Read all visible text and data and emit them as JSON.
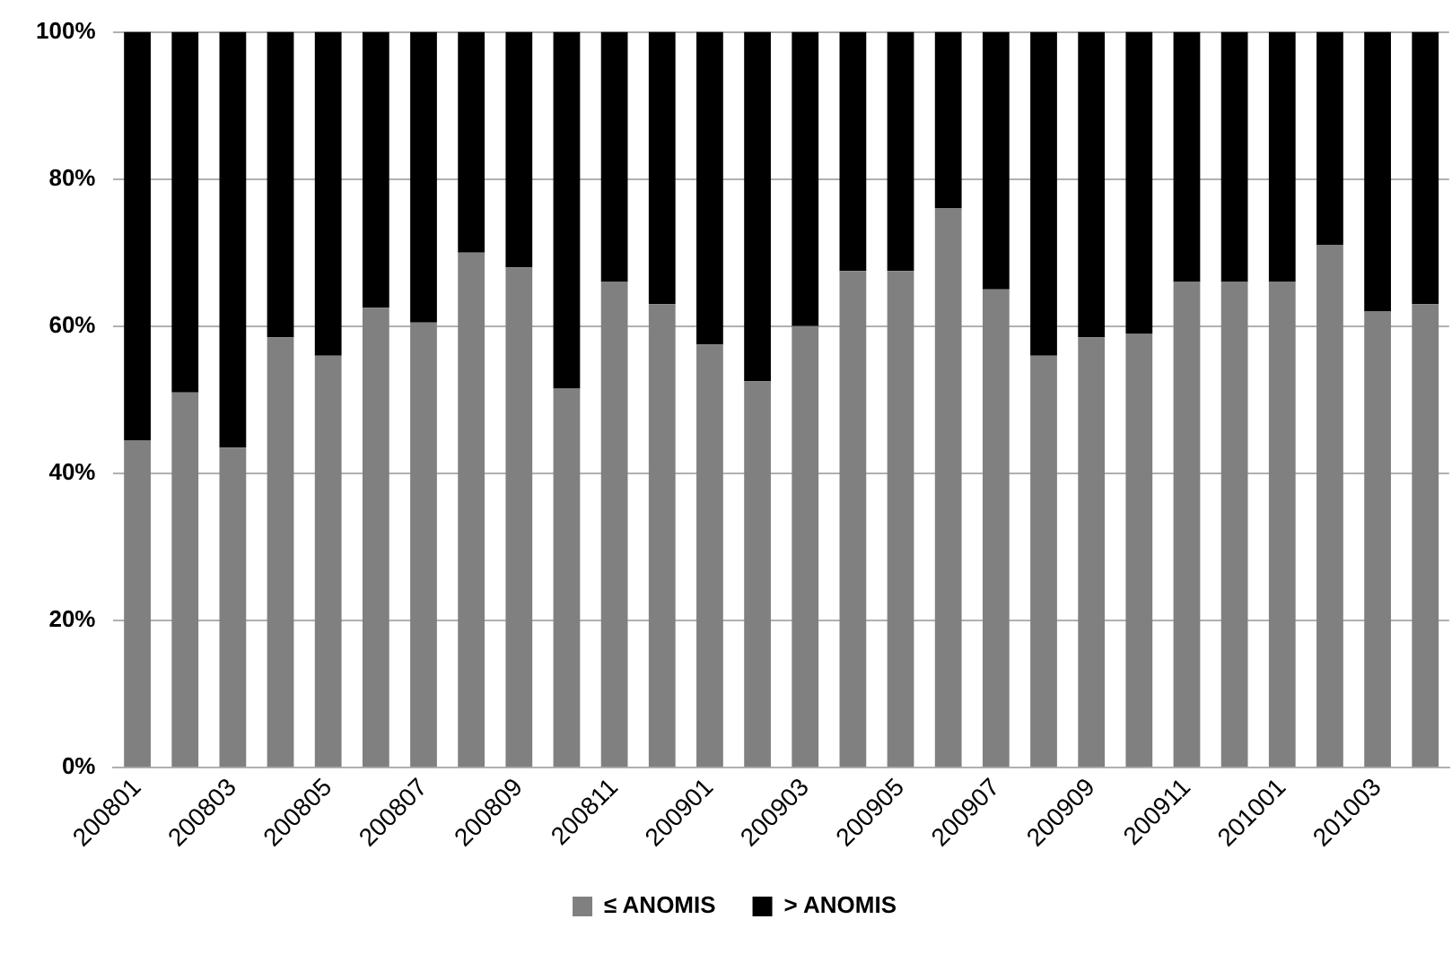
{
  "chart_data": {
    "type": "bar",
    "stacked": true,
    "categories": [
      "200801",
      null,
      "200803",
      null,
      "200805",
      null,
      "200807",
      null,
      "200809",
      null,
      "200811",
      null,
      "200901",
      null,
      "200903",
      null,
      "200905",
      null,
      "200907",
      null,
      "200909",
      null,
      "200911",
      null,
      "201001",
      null,
      "201003",
      null
    ],
    "series": [
      {
        "name": "≤ ANOMIS",
        "color": "#808080",
        "values": [
          44.5,
          51,
          43.5,
          58.5,
          56,
          62.5,
          60.5,
          70,
          68,
          51.5,
          66,
          63,
          57.5,
          52.5,
          60,
          67.5,
          67.5,
          76,
          65,
          56,
          58.5,
          59,
          66,
          66,
          66,
          71,
          62,
          63
        ]
      },
      {
        "name": "> ANOMIS",
        "color": "#000000",
        "values": [
          55.5,
          49,
          56.5,
          41.5,
          44,
          37.5,
          39.5,
          30,
          32,
          48.5,
          34,
          37,
          42.5,
          47.5,
          40,
          32.5,
          32.5,
          24,
          35,
          44,
          41.5,
          41,
          34,
          34,
          34,
          29,
          38,
          37
        ]
      }
    ],
    "ylim": [
      0,
      100
    ],
    "yticks": [
      {
        "value": 0,
        "label": "0%"
      },
      {
        "value": 20,
        "label": "20%"
      },
      {
        "value": 40,
        "label": "40%"
      },
      {
        "value": 60,
        "label": "60%"
      },
      {
        "value": 80,
        "label": "80%"
      },
      {
        "value": 100,
        "label": "100%"
      }
    ],
    "grid": "y",
    "legend": "bottom"
  }
}
